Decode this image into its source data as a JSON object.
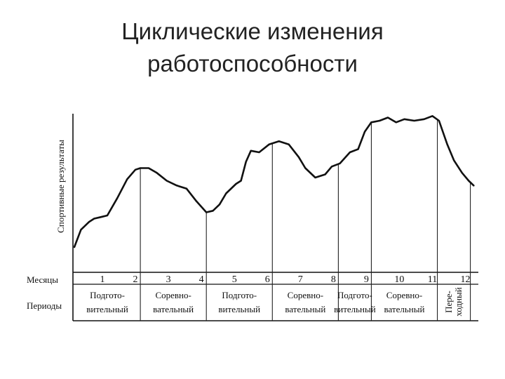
{
  "slide": {
    "title_line1": "Циклические изменения",
    "title_line2": "работоспособности"
  },
  "chart_data": {
    "type": "line",
    "title": "",
    "ylabel": "Спортивные результаты",
    "row_labels": {
      "months": "Месяцы",
      "periods": "Периоды"
    },
    "x_range": [
      0,
      12.2
    ],
    "y_range": [
      0,
      100
    ],
    "months": [
      "1",
      "2",
      "3",
      "4",
      "5",
      "6",
      "7",
      "8",
      "9",
      "10",
      "11",
      "12"
    ],
    "series": [
      {
        "x": [
          0.0,
          0.2,
          0.45,
          0.6,
          0.8,
          1.0,
          1.3,
          1.6,
          1.85,
          2.0,
          2.25,
          2.5,
          2.8,
          3.1,
          3.4,
          3.7,
          4.0,
          4.2,
          4.4,
          4.6,
          4.9,
          5.05,
          5.2,
          5.35,
          5.6,
          5.9,
          6.2,
          6.5,
          6.8,
          7.0,
          7.3,
          7.6,
          7.8,
          8.05,
          8.35,
          8.6,
          8.8,
          9.0,
          9.25,
          9.5,
          9.75,
          10.0,
          10.3,
          10.6,
          10.85,
          11.05,
          11.3,
          11.5,
          11.75,
          11.95,
          12.1
        ],
        "y": [
          16,
          27,
          32,
          34,
          35,
          36,
          47,
          59,
          65,
          66,
          66,
          63,
          58,
          55,
          53,
          45,
          38,
          39,
          43,
          50,
          56,
          58,
          70,
          77,
          76,
          81,
          83,
          81,
          73,
          66,
          60,
          62,
          67,
          69,
          76,
          78,
          89,
          95,
          96,
          98,
          95,
          97,
          96,
          97,
          99,
          96,
          81,
          71,
          63,
          58,
          55
        ]
      }
    ],
    "dividers_x": [
      2.0,
      4.0,
      6.0,
      8.0,
      9.0,
      11.0,
      12.0
    ],
    "periods": [
      {
        "line1": "Подгото-",
        "line2": "вительный"
      },
      {
        "line1": "Соревно-",
        "line2": "вательный"
      },
      {
        "line1": "Подгото-",
        "line2": "вительный"
      },
      {
        "line1": "Соревно-",
        "line2": "вательный"
      },
      {
        "line1": "Подгото-",
        "line2": "вительный"
      },
      {
        "line1": "Соревно-",
        "line2": "вательный"
      },
      {
        "line1": "Пере-",
        "line2": "ходный"
      }
    ],
    "period_bounds": [
      [
        0,
        2.0
      ],
      [
        2.0,
        4.0
      ],
      [
        4.0,
        6.0
      ],
      [
        6.0,
        8.0
      ],
      [
        8.0,
        9.0
      ],
      [
        9.0,
        11.0
      ],
      [
        11.0,
        12.0
      ]
    ],
    "grid": false,
    "legend": "none"
  }
}
